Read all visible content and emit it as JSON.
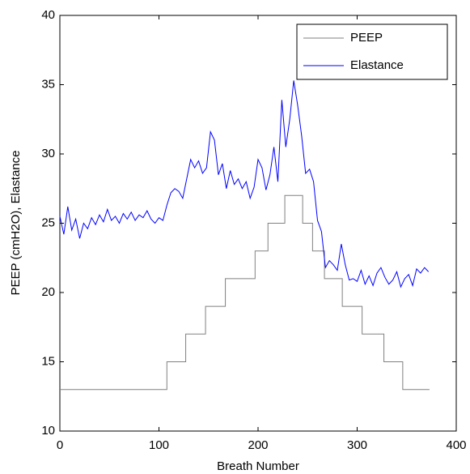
{
  "chart_data": {
    "type": "line",
    "xlabel": "Breath Number",
    "ylabel": "PEEP (cmH2O), Elastance",
    "xlim": [
      0,
      400
    ],
    "xticks": [
      0,
      100,
      200,
      300,
      400
    ],
    "ylim": [
      10,
      40
    ],
    "yticks": [
      10,
      15,
      20,
      25,
      30,
      35,
      40
    ],
    "legend": "northeast",
    "box": true,
    "series": [
      {
        "name": "PEEP",
        "color": "#808080",
        "x": [
          0,
          108,
          108,
          127,
          127,
          147,
          147,
          167,
          167,
          197,
          197,
          210,
          210,
          227,
          227,
          245,
          245,
          255,
          255,
          267,
          267,
          285,
          285,
          305,
          305,
          327,
          327,
          346,
          346,
          373
        ],
        "values": [
          13,
          13,
          15,
          15,
          17,
          17,
          19,
          19,
          21,
          21,
          23,
          23,
          25,
          25,
          27,
          27,
          25,
          25,
          23,
          23,
          21,
          21,
          19,
          19,
          17,
          17,
          15,
          15,
          13,
          13
        ]
      },
      {
        "name": "Elastance",
        "color": "#0000ff",
        "x": [
          0,
          4,
          8,
          12,
          16,
          20,
          24,
          28,
          32,
          36,
          40,
          44,
          48,
          52,
          56,
          60,
          64,
          68,
          72,
          76,
          80,
          84,
          88,
          92,
          96,
          100,
          104,
          108,
          112,
          116,
          120,
          124,
          128,
          132,
          136,
          140,
          144,
          148,
          152,
          156,
          160,
          164,
          168,
          172,
          176,
          180,
          184,
          188,
          192,
          196,
          200,
          204,
          208,
          212,
          216,
          220,
          224,
          228,
          232,
          236,
          240,
          244,
          248,
          252,
          256,
          260,
          264,
          268,
          272,
          276,
          280,
          284,
          288,
          292,
          296,
          300,
          304,
          308,
          312,
          316,
          320,
          324,
          328,
          332,
          336,
          340,
          344,
          348,
          352,
          356,
          360,
          364,
          368,
          372
        ],
        "values": [
          25.5,
          24.2,
          26.2,
          24.5,
          25.3,
          23.9,
          25.0,
          24.6,
          25.4,
          24.9,
          25.6,
          25.1,
          26.0,
          25.2,
          25.5,
          25.0,
          25.7,
          25.3,
          25.8,
          25.2,
          25.6,
          25.4,
          25.9,
          25.3,
          25.0,
          25.4,
          25.2,
          26.3,
          27.2,
          27.5,
          27.3,
          26.8,
          28.2,
          29.6,
          29.0,
          29.5,
          28.6,
          29.0,
          31.6,
          31.0,
          28.5,
          29.3,
          27.5,
          28.8,
          27.8,
          28.2,
          27.5,
          28.0,
          26.8,
          27.6,
          29.6,
          29.0,
          27.4,
          28.5,
          30.5,
          28.0,
          33.9,
          30.5,
          32.5,
          35.3,
          33.5,
          31.3,
          28.6,
          28.9,
          28.0,
          25.2,
          24.4,
          21.8,
          22.3,
          22.0,
          21.6,
          23.5,
          22.0,
          20.9,
          21.0,
          20.8,
          21.6,
          20.6,
          21.2,
          20.5,
          21.4,
          21.8,
          21.1,
          20.6,
          20.9,
          21.5,
          20.4,
          21.0,
          21.3,
          20.5,
          21.7,
          21.4,
          21.8,
          21.5
        ]
      }
    ]
  }
}
